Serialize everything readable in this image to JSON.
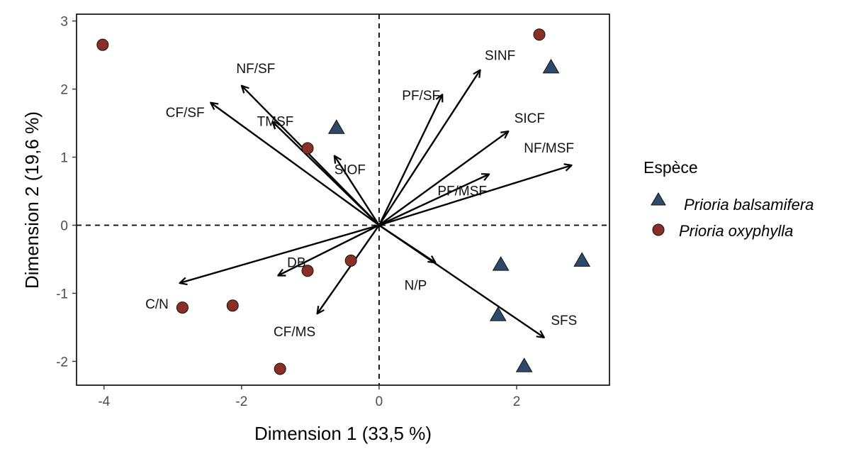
{
  "chart_data": {
    "type": "scatter",
    "subtype": "pca-biplot",
    "xlabel": "Dimension 1 (33,5 %)",
    "ylabel": "Dimension 2 (19,6 %)",
    "xlim": [
      -4.4,
      3.35
    ],
    "ylim": [
      -2.35,
      3.1
    ],
    "xticks": [
      -4,
      -2,
      0,
      2
    ],
    "yticks": [
      -2,
      -1,
      0,
      1,
      2,
      3
    ],
    "colors": {
      "balsamifera": "#2e4a6b",
      "oxyphylla": "#8b2e25",
      "arrow": "#000000"
    },
    "vectors": [
      {
        "name": "NF/SF",
        "x": -2.0,
        "y": 2.05
      },
      {
        "name": "CF/SF",
        "x": -2.45,
        "y": 1.8
      },
      {
        "name": "TMSF",
        "x": -1.55,
        "y": 1.52
      },
      {
        "name": "SIOF",
        "x": -0.65,
        "y": 1.02
      },
      {
        "name": "PF/SF",
        "x": 0.92,
        "y": 1.92
      },
      {
        "name": "SINF",
        "x": 1.47,
        "y": 2.28
      },
      {
        "name": "SICF",
        "x": 1.88,
        "y": 1.38
      },
      {
        "name": "NF/MSF",
        "x": 2.8,
        "y": 0.88
      },
      {
        "name": "PF/MSF",
        "x": 1.6,
        "y": 0.75
      },
      {
        "name": "N/P",
        "x": 0.82,
        "y": -0.55
      },
      {
        "name": "SFS",
        "x": 2.4,
        "y": -1.65
      },
      {
        "name": "C/N",
        "x": -2.9,
        "y": -0.85
      },
      {
        "name": "DB",
        "x": -1.47,
        "y": -0.74
      },
      {
        "name": "CF/MS",
        "x": -0.9,
        "y": -1.3
      }
    ],
    "series": [
      {
        "name": "Prioria balsamifera",
        "marker": "triangle",
        "points": [
          {
            "x": 2.5,
            "y": 2.32
          },
          {
            "x": -0.62,
            "y": 1.43
          },
          {
            "x": 1.77,
            "y": -0.58
          },
          {
            "x": 2.95,
            "y": -0.52
          },
          {
            "x": 1.73,
            "y": -1.32
          },
          {
            "x": 2.11,
            "y": -2.07
          }
        ]
      },
      {
        "name": "Prioria oxyphylla",
        "marker": "circle",
        "points": [
          {
            "x": -4.02,
            "y": 2.65
          },
          {
            "x": 2.33,
            "y": 2.8
          },
          {
            "x": -1.04,
            "y": 1.13
          },
          {
            "x": -1.04,
            "y": -0.67
          },
          {
            "x": -0.41,
            "y": -0.52
          },
          {
            "x": -2.86,
            "y": -1.21
          },
          {
            "x": -2.13,
            "y": -1.18
          },
          {
            "x": -1.44,
            "y": -2.11
          }
        ]
      }
    ],
    "legend": {
      "title": "Espèce",
      "position": "right"
    }
  }
}
